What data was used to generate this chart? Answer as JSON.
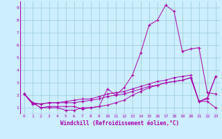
{
  "xlabel": "Windchill (Refroidissement éolien,°C)",
  "xlim": [
    -0.5,
    23.5
  ],
  "ylim": [
    0.5,
    9.5
  ],
  "xticks": [
    0,
    1,
    2,
    3,
    4,
    5,
    6,
    7,
    8,
    9,
    10,
    11,
    12,
    13,
    14,
    15,
    16,
    17,
    18,
    19,
    20,
    21,
    22,
    23
  ],
  "yticks": [
    1,
    2,
    3,
    4,
    5,
    6,
    7,
    8,
    9
  ],
  "bg_color": "#cceeff",
  "line_color": "#aa00aa",
  "grid_color": "#99cccc",
  "series": [
    [
      2.1,
      1.4,
      1.0,
      1.0,
      1.0,
      0.8,
      0.8,
      1.0,
      1.0,
      1.1,
      2.5,
      2.0,
      2.6,
      3.6,
      5.4,
      7.6,
      8.0,
      9.2,
      8.7,
      5.5,
      5.7,
      5.8,
      2.2,
      2.1
    ],
    [
      2.1,
      1.4,
      1.0,
      1.1,
      1.1,
      1.1,
      1.1,
      0.9,
      1.0,
      1.1,
      1.2,
      1.4,
      1.6,
      2.0,
      2.3,
      2.6,
      2.8,
      3.0,
      3.1,
      3.2,
      3.4,
      1.5,
      1.5,
      1.0
    ],
    [
      2.1,
      1.4,
      1.3,
      1.4,
      1.4,
      1.4,
      1.4,
      1.5,
      1.6,
      1.7,
      1.9,
      2.0,
      2.1,
      2.3,
      2.5,
      2.7,
      2.8,
      3.0,
      3.1,
      3.2,
      3.4,
      1.5,
      1.7,
      3.5
    ],
    [
      2.1,
      1.3,
      1.3,
      1.4,
      1.4,
      1.5,
      1.6,
      1.7,
      1.7,
      1.9,
      2.1,
      2.2,
      2.3,
      2.5,
      2.7,
      2.9,
      3.1,
      3.2,
      3.4,
      3.5,
      3.6,
      1.5,
      1.8,
      3.5
    ]
  ]
}
